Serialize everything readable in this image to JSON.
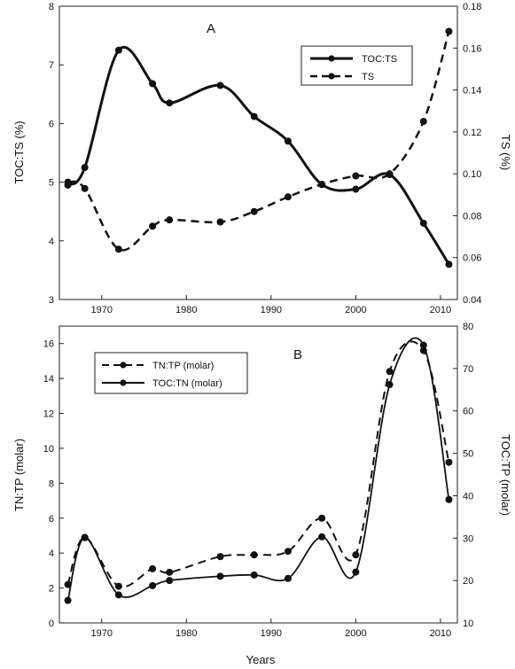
{
  "chart_data": [
    {
      "type": "line",
      "panel_label": "A",
      "xlabel": "",
      "ylabel": "TOC:TS (%)",
      "y2label": "TS (%)",
      "xlim": [
        1965,
        2012
      ],
      "ylim": [
        3,
        8
      ],
      "y2lim": [
        0.04,
        0.18
      ],
      "xticks": [
        "1970",
        "1980",
        "1990",
        "2000",
        "2010"
      ],
      "yticks": [
        "3",
        "4",
        "5",
        "6",
        "7",
        "8"
      ],
      "y2ticks": [
        "0.04",
        "0.06",
        "0.08",
        "0.10",
        "0.12",
        "0.14",
        "0.16",
        "0.18"
      ],
      "legend_position": "top-right",
      "series": [
        {
          "name": "TOC:TS",
          "axis": "left",
          "style": "solid",
          "x": [
            1966,
            1968,
            1972,
            1976,
            1978,
            1984,
            1988,
            1992,
            1996,
            2000,
            2004,
            2008,
            2011
          ],
          "y": [
            4.95,
            5.25,
            7.25,
            6.68,
            6.35,
            6.65,
            6.12,
            5.7,
            4.96,
            4.88,
            5.13,
            4.3,
            3.6
          ]
        },
        {
          "name": "TS",
          "axis": "right",
          "style": "dashed",
          "x": [
            1966,
            1968,
            1972,
            1976,
            1978,
            1984,
            1988,
            1992,
            1996,
            2000,
            2004,
            2008,
            2011
          ],
          "y": [
            0.096,
            0.093,
            0.064,
            0.075,
            0.078,
            0.077,
            0.082,
            0.089,
            0.095,
            0.099,
            0.1,
            0.125,
            0.168
          ]
        }
      ]
    },
    {
      "type": "line",
      "panel_label": "B",
      "xlabel": "Years",
      "ylabel": "TN:TP (molar)",
      "y2label": "TOC:TP (molar)",
      "xlim": [
        1965,
        2012
      ],
      "ylim": [
        0,
        17
      ],
      "y2lim": [
        10,
        80
      ],
      "xticks": [
        "1970",
        "1980",
        "1990",
        "2000",
        "2010"
      ],
      "yticks": [
        "0",
        "2",
        "4",
        "6",
        "8",
        "10",
        "12",
        "14",
        "16"
      ],
      "y2ticks": [
        "10",
        "20",
        "30",
        "40",
        "50",
        "60",
        "70",
        "80"
      ],
      "legend_position": "top-left",
      "series": [
        {
          "name": "TN:TP (molar)",
          "axis": "left",
          "style": "dashed",
          "x": [
            1966,
            1968,
            1972,
            1976,
            1978,
            1984,
            1988,
            1992,
            1996,
            2000,
            2004,
            2008,
            2011
          ],
          "y": [
            2.2,
            4.9,
            2.1,
            3.1,
            2.9,
            3.8,
            3.9,
            4.1,
            6.0,
            3.9,
            14.4,
            15.6,
            9.2
          ]
        },
        {
          "name": "TOC:TN (molar)",
          "axis": "right",
          "style": "solid",
          "x": [
            1966,
            1968,
            1972,
            1976,
            1978,
            1984,
            1988,
            1992,
            1996,
            2000,
            2004,
            2008,
            2011
          ],
          "y": [
            15.3,
            30.1,
            16.6,
            18.8,
            20,
            21,
            21.3,
            20.5,
            30.3,
            22,
            66.2,
            75.5,
            39.1
          ]
        }
      ]
    }
  ]
}
